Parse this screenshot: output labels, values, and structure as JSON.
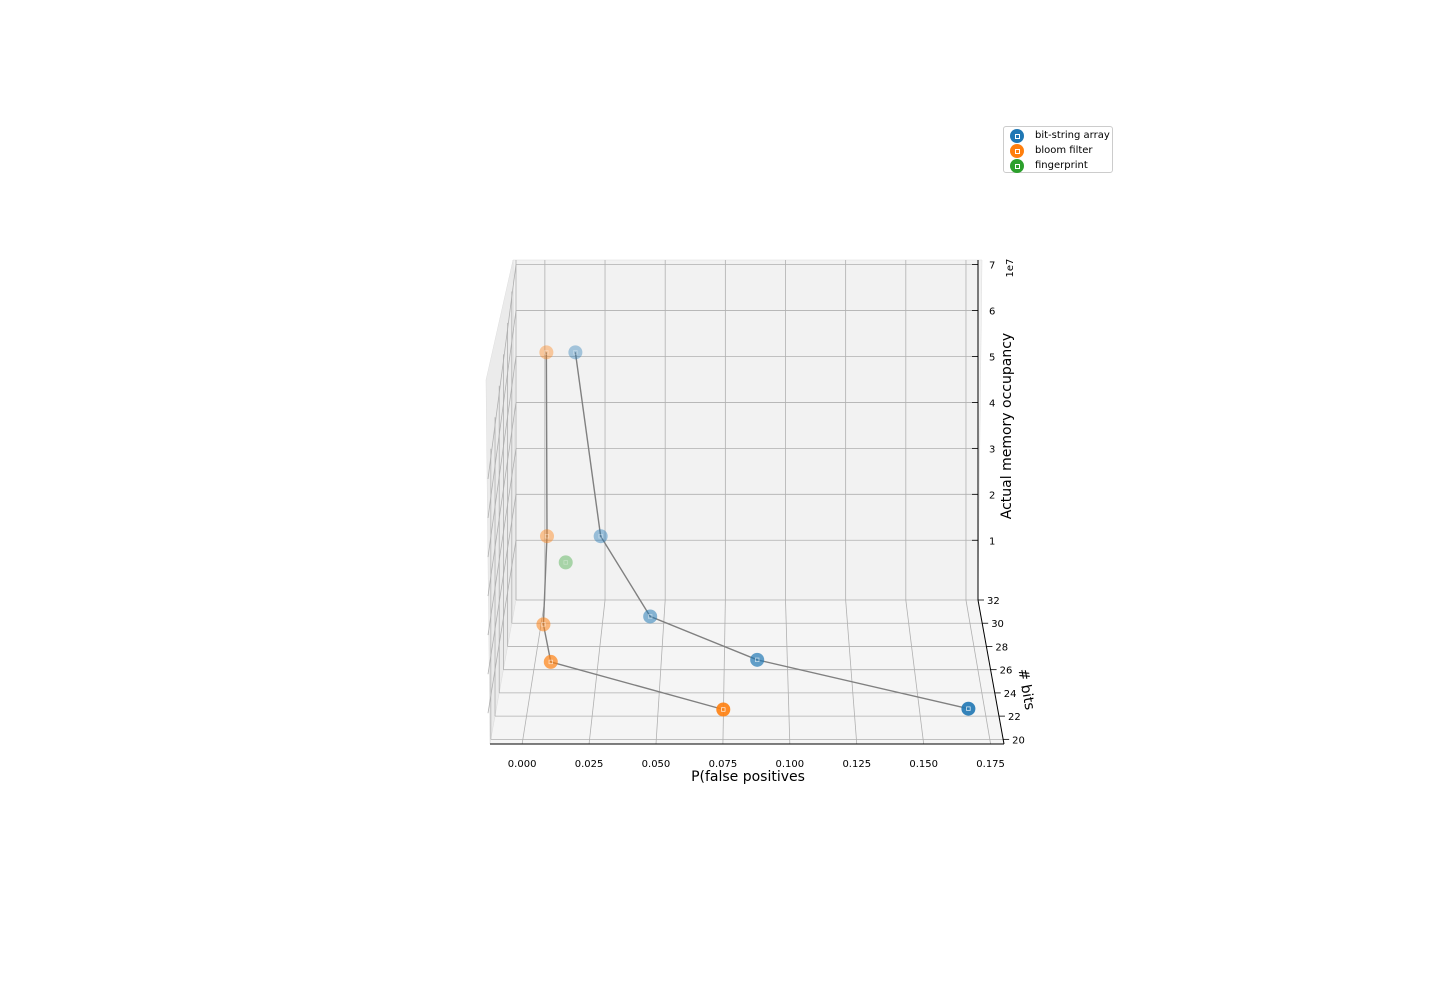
{
  "chart_data": {
    "type": "scatter",
    "projection": "3d",
    "xlabel": "P(false positives",
    "ylabel": "# bits",
    "zlabel": "Actual memory occupancy",
    "z_offset_label": "1e7",
    "xlim": [
      -0.012,
      0.18
    ],
    "ylim": [
      20,
      32
    ],
    "zlim": [
      -1,
      7
    ],
    "x_ticks": [
      "0.000",
      "0.025",
      "0.050",
      "0.075",
      "0.100",
      "0.125",
      "0.150",
      "0.175"
    ],
    "y_ticks": [
      "20",
      "22",
      "24",
      "26",
      "28",
      "30",
      "32"
    ],
    "z_ticks": [
      "1",
      "2",
      "3",
      "4",
      "5",
      "6",
      "7"
    ],
    "grid": true,
    "legend_position": "top-right",
    "series": [
      {
        "name": "bit-string array",
        "color": "#1f77b4",
        "connected": true,
        "points": [
          {
            "x": 0.168,
            "y": 21.5,
            "z": 0.03
          },
          {
            "x": 0.088,
            "y": 25.5,
            "z": 0.07
          },
          {
            "x": 0.045,
            "y": 28.5,
            "z": 0.25
          },
          {
            "x": 0.024,
            "y": 30.5,
            "z": 1.5
          },
          {
            "x": 0.013,
            "y": 31.5,
            "z": 5.25
          }
        ]
      },
      {
        "name": "bloom filter",
        "color": "#ff7f0e",
        "connected": true,
        "points": [
          {
            "x": 0.075,
            "y": 21.5,
            "z": 0.01
          },
          {
            "x": 0.007,
            "y": 25.5,
            "z": 0.02
          },
          {
            "x": 0.002,
            "y": 28.5,
            "z": 0.07
          },
          {
            "x": 0.002,
            "y": 30.5,
            "z": 1.5
          },
          {
            "x": 0.001,
            "y": 31.5,
            "z": 5.25
          }
        ]
      },
      {
        "name": "fingerprint",
        "color": "#2ca02c",
        "connected": false,
        "points": [
          {
            "x": 0.009,
            "y": 31.5,
            "z": 0.65
          }
        ]
      }
    ]
  }
}
